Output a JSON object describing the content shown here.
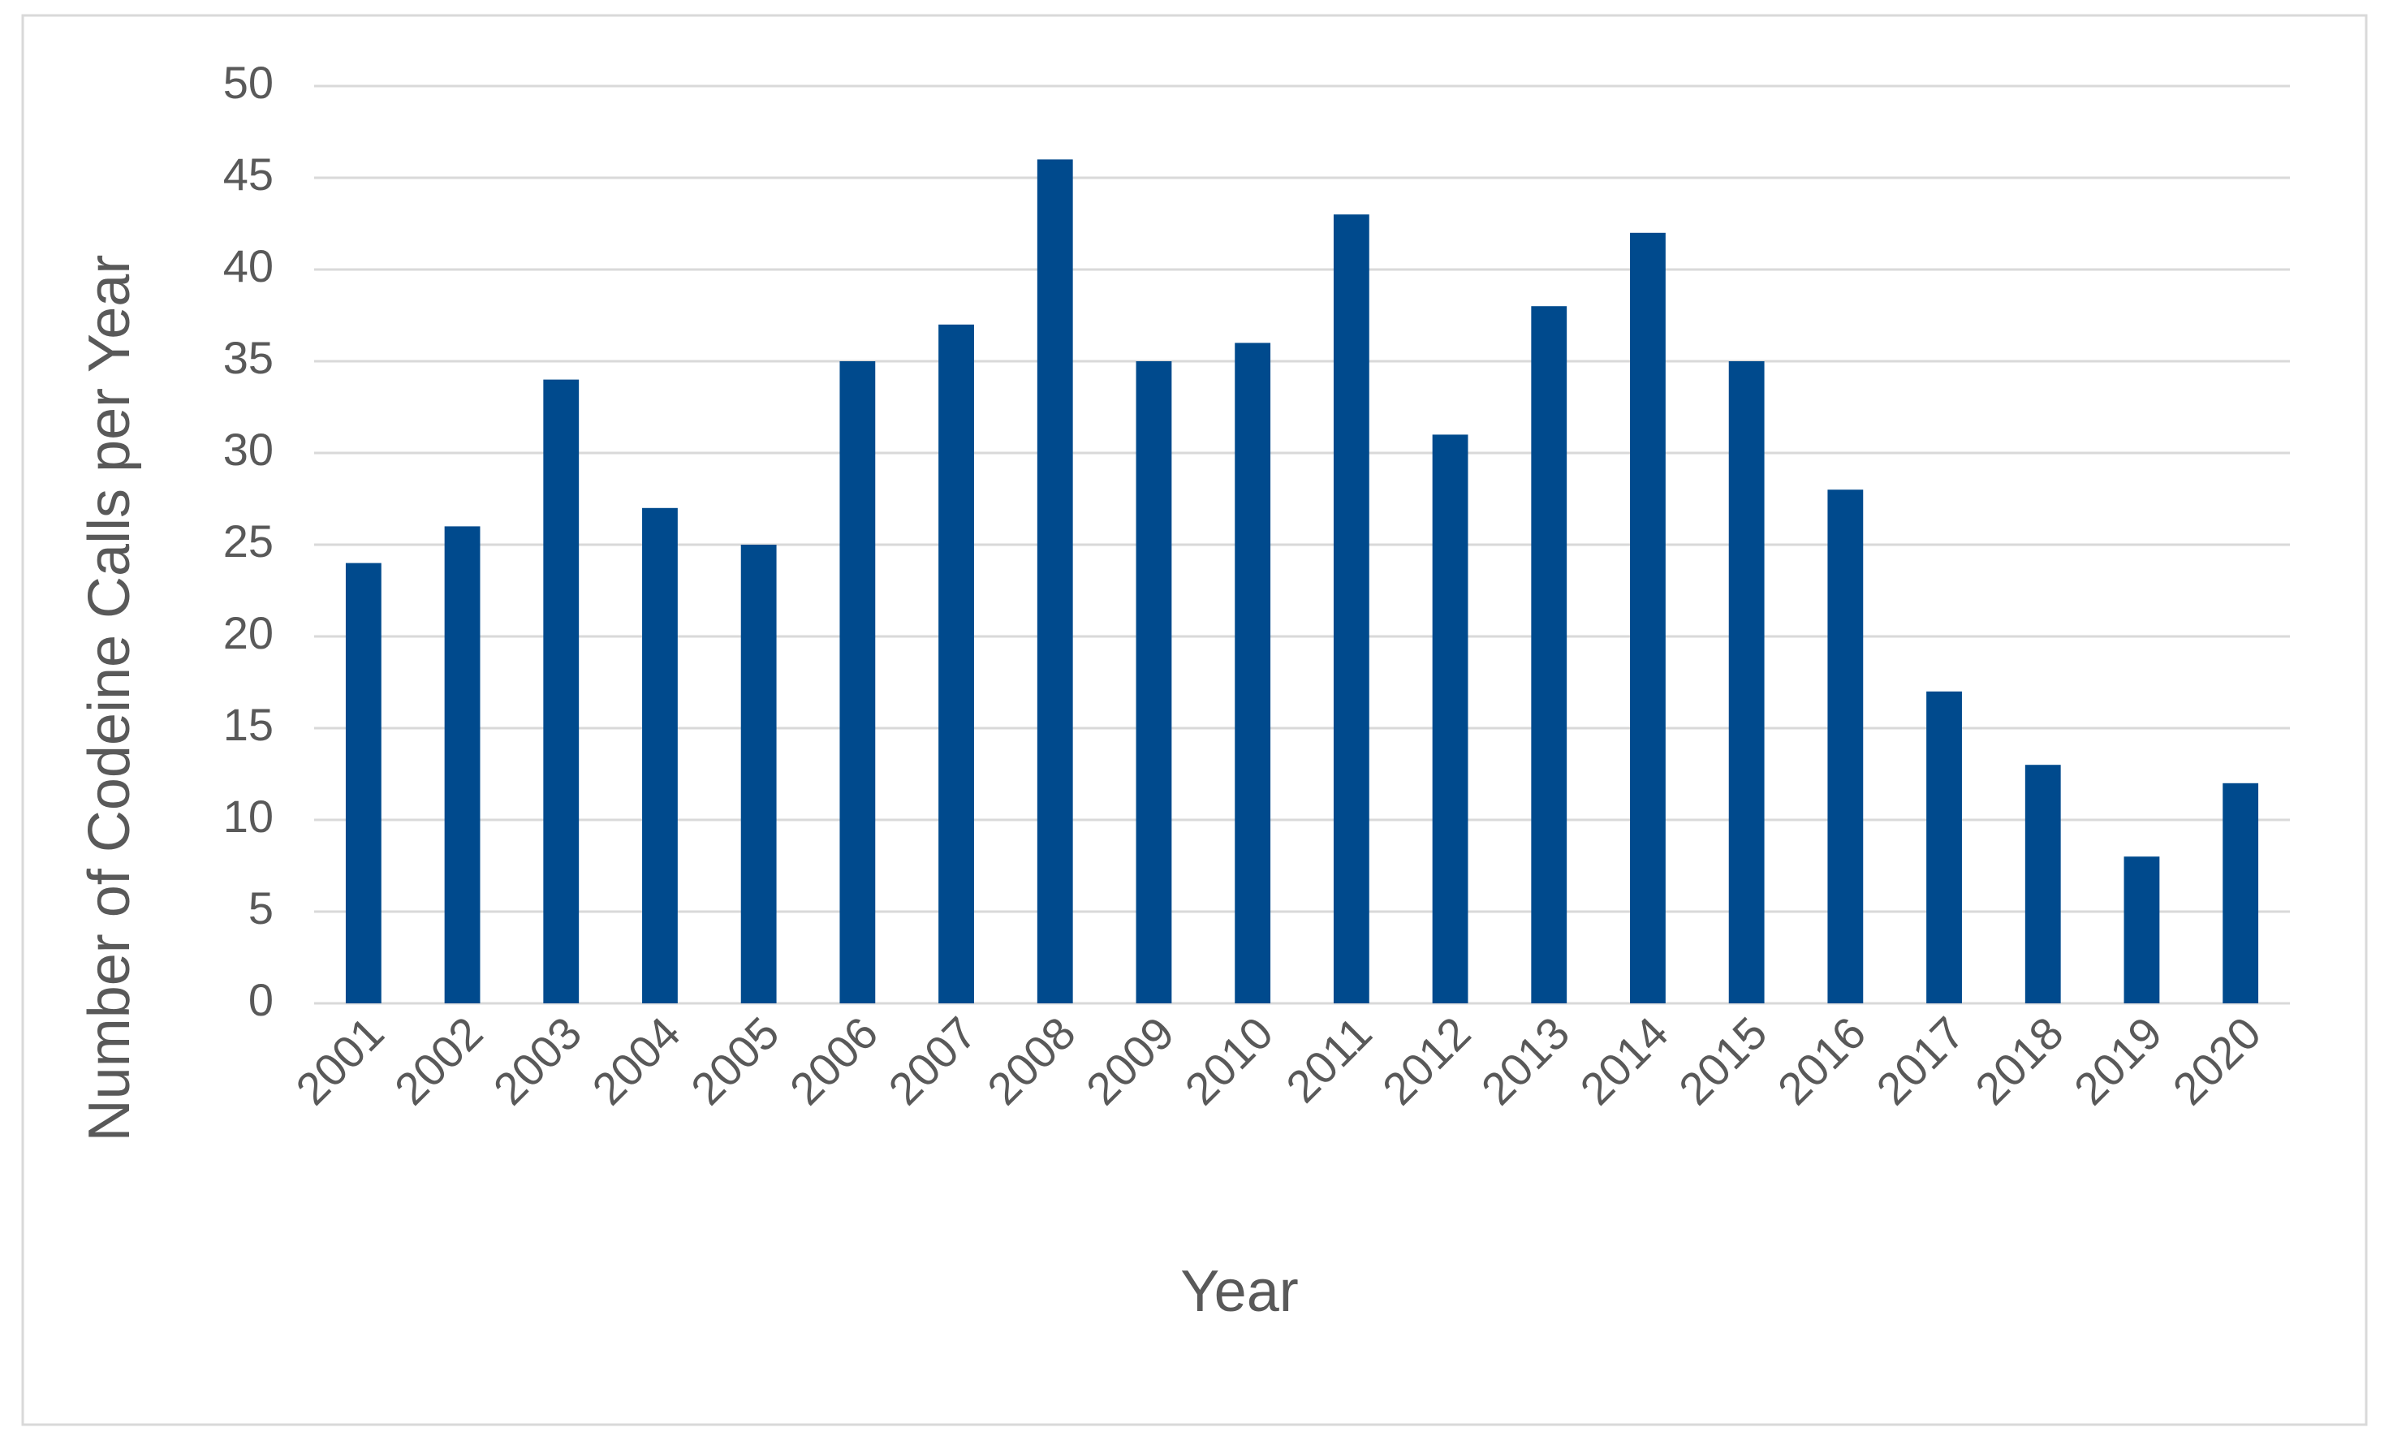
{
  "chart_data": {
    "type": "bar",
    "x_label": "Year",
    "y_label": "Number of Codeine Calls per Year",
    "categories": [
      "2001",
      "2002",
      "2003",
      "2004",
      "2005",
      "2006",
      "2007",
      "2008",
      "2009",
      "2010",
      "2011",
      "2012",
      "2013",
      "2014",
      "2015",
      "2016",
      "2017",
      "2018",
      "2019",
      "2020"
    ],
    "values": [
      24,
      26,
      34,
      27,
      25,
      35,
      37,
      46,
      35,
      36,
      43,
      31,
      38,
      42,
      35,
      28,
      17,
      13,
      8,
      12
    ],
    "color": "#004a8d",
    "ylim": [
      0,
      50
    ],
    "yticks": [
      0,
      5,
      10,
      15,
      20,
      25,
      30,
      35,
      40,
      45,
      50
    ],
    "grid": true
  }
}
